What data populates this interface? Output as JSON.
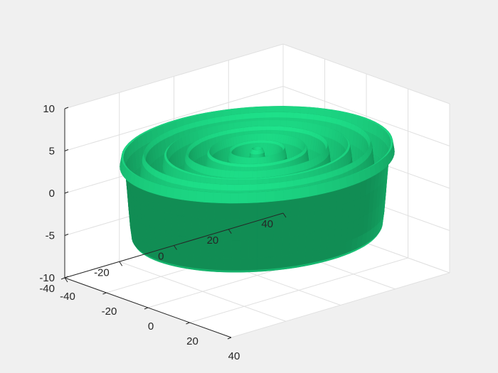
{
  "chart_data": {
    "type": "surface",
    "title": "",
    "xlabel": "",
    "ylabel": "",
    "zlabel": "",
    "function": "z = 5*sin(sqrt(x^2 + y^2)) over circular domain",
    "domain_radius": 40,
    "xlim": [
      -40,
      40
    ],
    "ylim": [
      -40,
      40
    ],
    "zlim": [
      -10,
      10
    ],
    "x_ticks": [
      -40,
      -20,
      0,
      20,
      40
    ],
    "y_ticks": [
      -40,
      -20,
      0,
      20,
      40
    ],
    "z_ticks": [
      -10,
      -5,
      0,
      5,
      10
    ],
    "x_tick_labels": [
      "-40",
      "-20",
      "0",
      "20",
      "40"
    ],
    "y_tick_labels": [
      "-40",
      "-20",
      "0",
      "20",
      "40"
    ],
    "z_tick_labels": [
      "-10",
      "-5",
      "0",
      "5",
      "10"
    ],
    "grid": true,
    "view": "default 3-D (az -37.5, el 30)",
    "colors": {
      "surface": "#1ee38b",
      "surface_dark": "#0a7a44",
      "background": "#f0f0f0",
      "axes_background": "#ffffff",
      "grid": "#e0e0e0",
      "axis_line": "#262626"
    }
  }
}
